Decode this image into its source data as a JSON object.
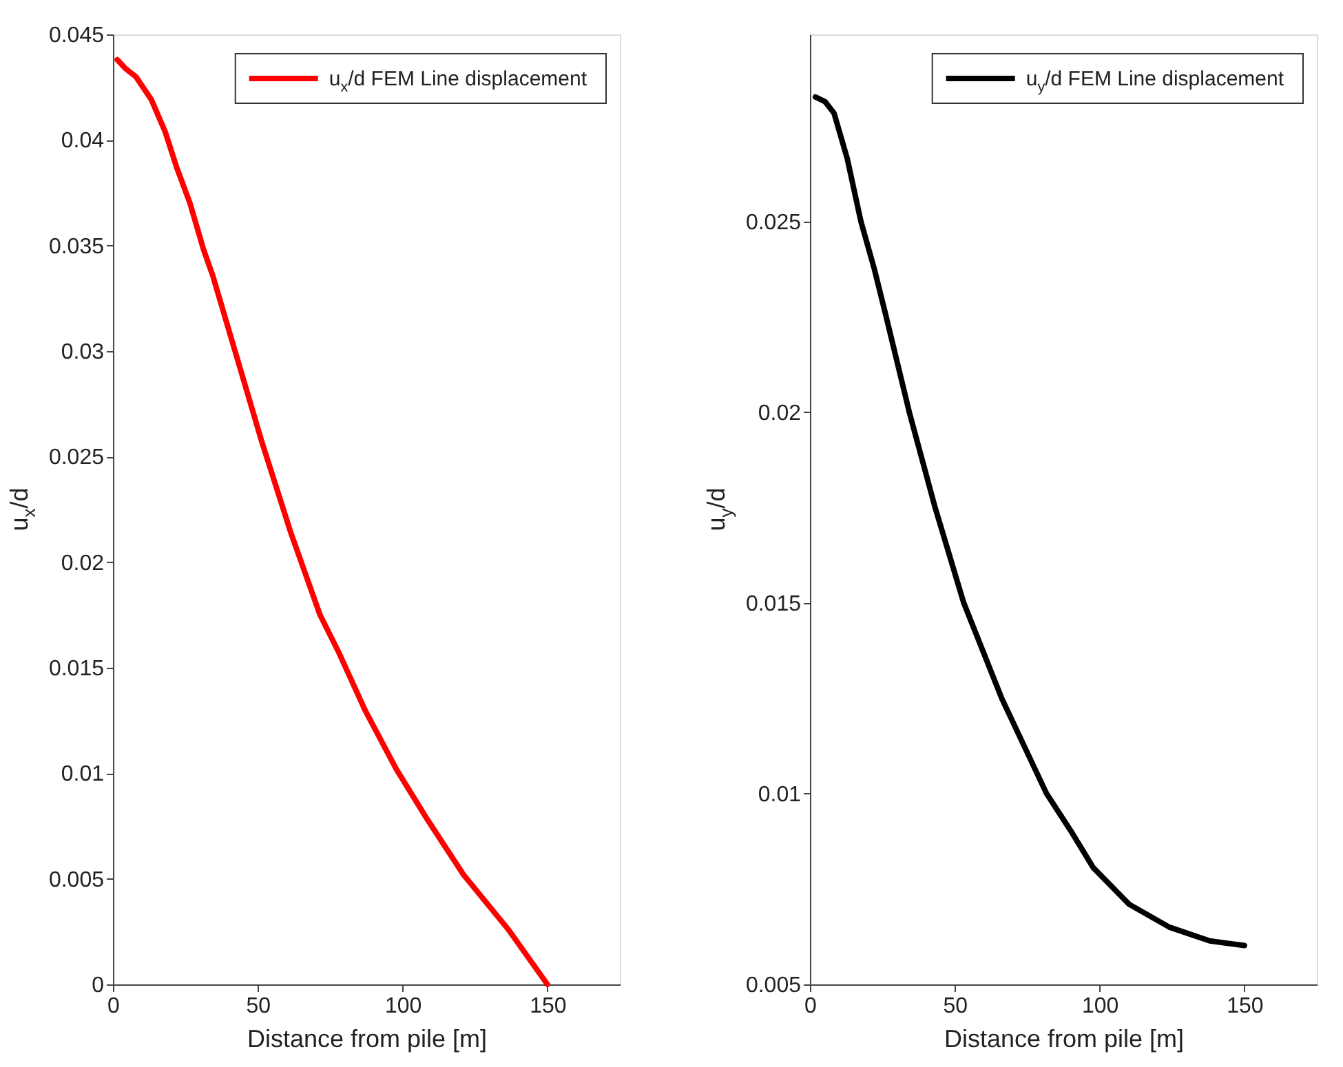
{
  "chart_data": [
    {
      "type": "line",
      "xlabel": "Distance from pile [m]",
      "ylabel": "u$_{x}$/d",
      "xlim": [
        0,
        175
      ],
      "xticks": [
        0,
        50,
        100,
        150
      ],
      "ylim": [
        0,
        0.045
      ],
      "yticks": [
        0,
        0.005,
        0.01,
        0.015,
        0.02,
        0.025,
        0.03,
        0.035,
        0.04,
        0.045
      ],
      "legend": "top right",
      "line_style": "solid",
      "x": [
        1.5,
        4.2,
        7.9,
        13.3,
        18.0,
        22.0,
        26.6,
        31.3,
        34.4,
        51.4,
        61.4,
        71.5,
        77.7,
        87.0,
        97.8,
        108.6,
        121.0,
        136.5,
        150
      ],
      "series": [
        {
          "name": "u$_{x}$/d FEM Line displacement",
          "color": "#ff0000",
          "values": [
            0.0438,
            0.0434,
            0.043,
            0.0419,
            0.0404,
            0.0387,
            0.037,
            0.0348,
            0.0336,
            0.0257,
            0.0214,
            0.0175,
            0.0158,
            0.013,
            0.0102,
            0.0078,
            0.0052,
            0.0026,
            0
          ]
        }
      ]
    },
    {
      "type": "line",
      "xlabel": "Distance from pile [m]",
      "ylabel": "u$_{y}$/d",
      "xlim": [
        0,
        175
      ],
      "xticks": [
        0,
        50,
        100,
        150
      ],
      "ylim": [
        0.005,
        0.0299
      ],
      "yticks": [
        0.005,
        0.01,
        0.015,
        0.02,
        0.025
      ],
      "legend": "top right",
      "line_style": "solid",
      "x": [
        1.9,
        5.2,
        8.3,
        12.9,
        17.6,
        22.2,
        26.1,
        34.3,
        43.1,
        53.1,
        66.2,
        81.7,
        90.1,
        97.8,
        110.2,
        124.1,
        138.0,
        150
      ],
      "series": [
        {
          "name": "u$_{y}$/d FEM Line displacement",
          "color": "#000000",
          "values": [
            0.02826,
            0.02814,
            0.02784,
            0.02664,
            0.025,
            0.02376,
            0.02257,
            0.02,
            0.01753,
            0.015,
            0.0125,
            0.01,
            0.00902,
            0.00806,
            0.0071,
            0.0065,
            0.00614,
            0.00602
          ]
        }
      ]
    }
  ]
}
